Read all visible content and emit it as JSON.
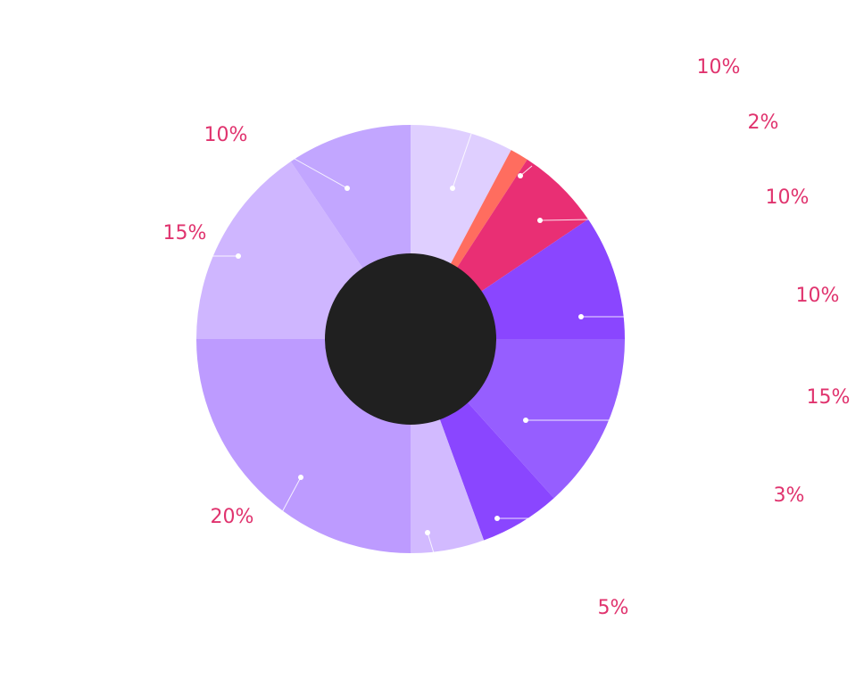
{
  "chart_data": {
    "type": "pie",
    "variant": "donut",
    "center_color": "#202020",
    "label_color": "#e0336e",
    "slices": [
      {
        "label": "10%",
        "value": 10,
        "color": "#dfcfff"
      },
      {
        "label": "2%",
        "value": 2,
        "color": "#ff6d5f"
      },
      {
        "label": "10%",
        "value": 10,
        "color": "#e92f74"
      },
      {
        "label": "10%",
        "value": 10,
        "color": "#8a46ff"
      },
      {
        "label": "15%",
        "value": 15,
        "color": "#965eff"
      },
      {
        "label": "3%",
        "value": 3,
        "color": "#8a46ff"
      },
      {
        "label": "5%",
        "value": 5,
        "color": "#d2baff"
      },
      {
        "label": "20%",
        "value": 20,
        "color": "#bd9bff"
      },
      {
        "label": "15%",
        "value": 15,
        "color": "#cfb6ff"
      },
      {
        "label": "10%",
        "value": 10,
        "color": "#c2a6ff"
      }
    ]
  }
}
